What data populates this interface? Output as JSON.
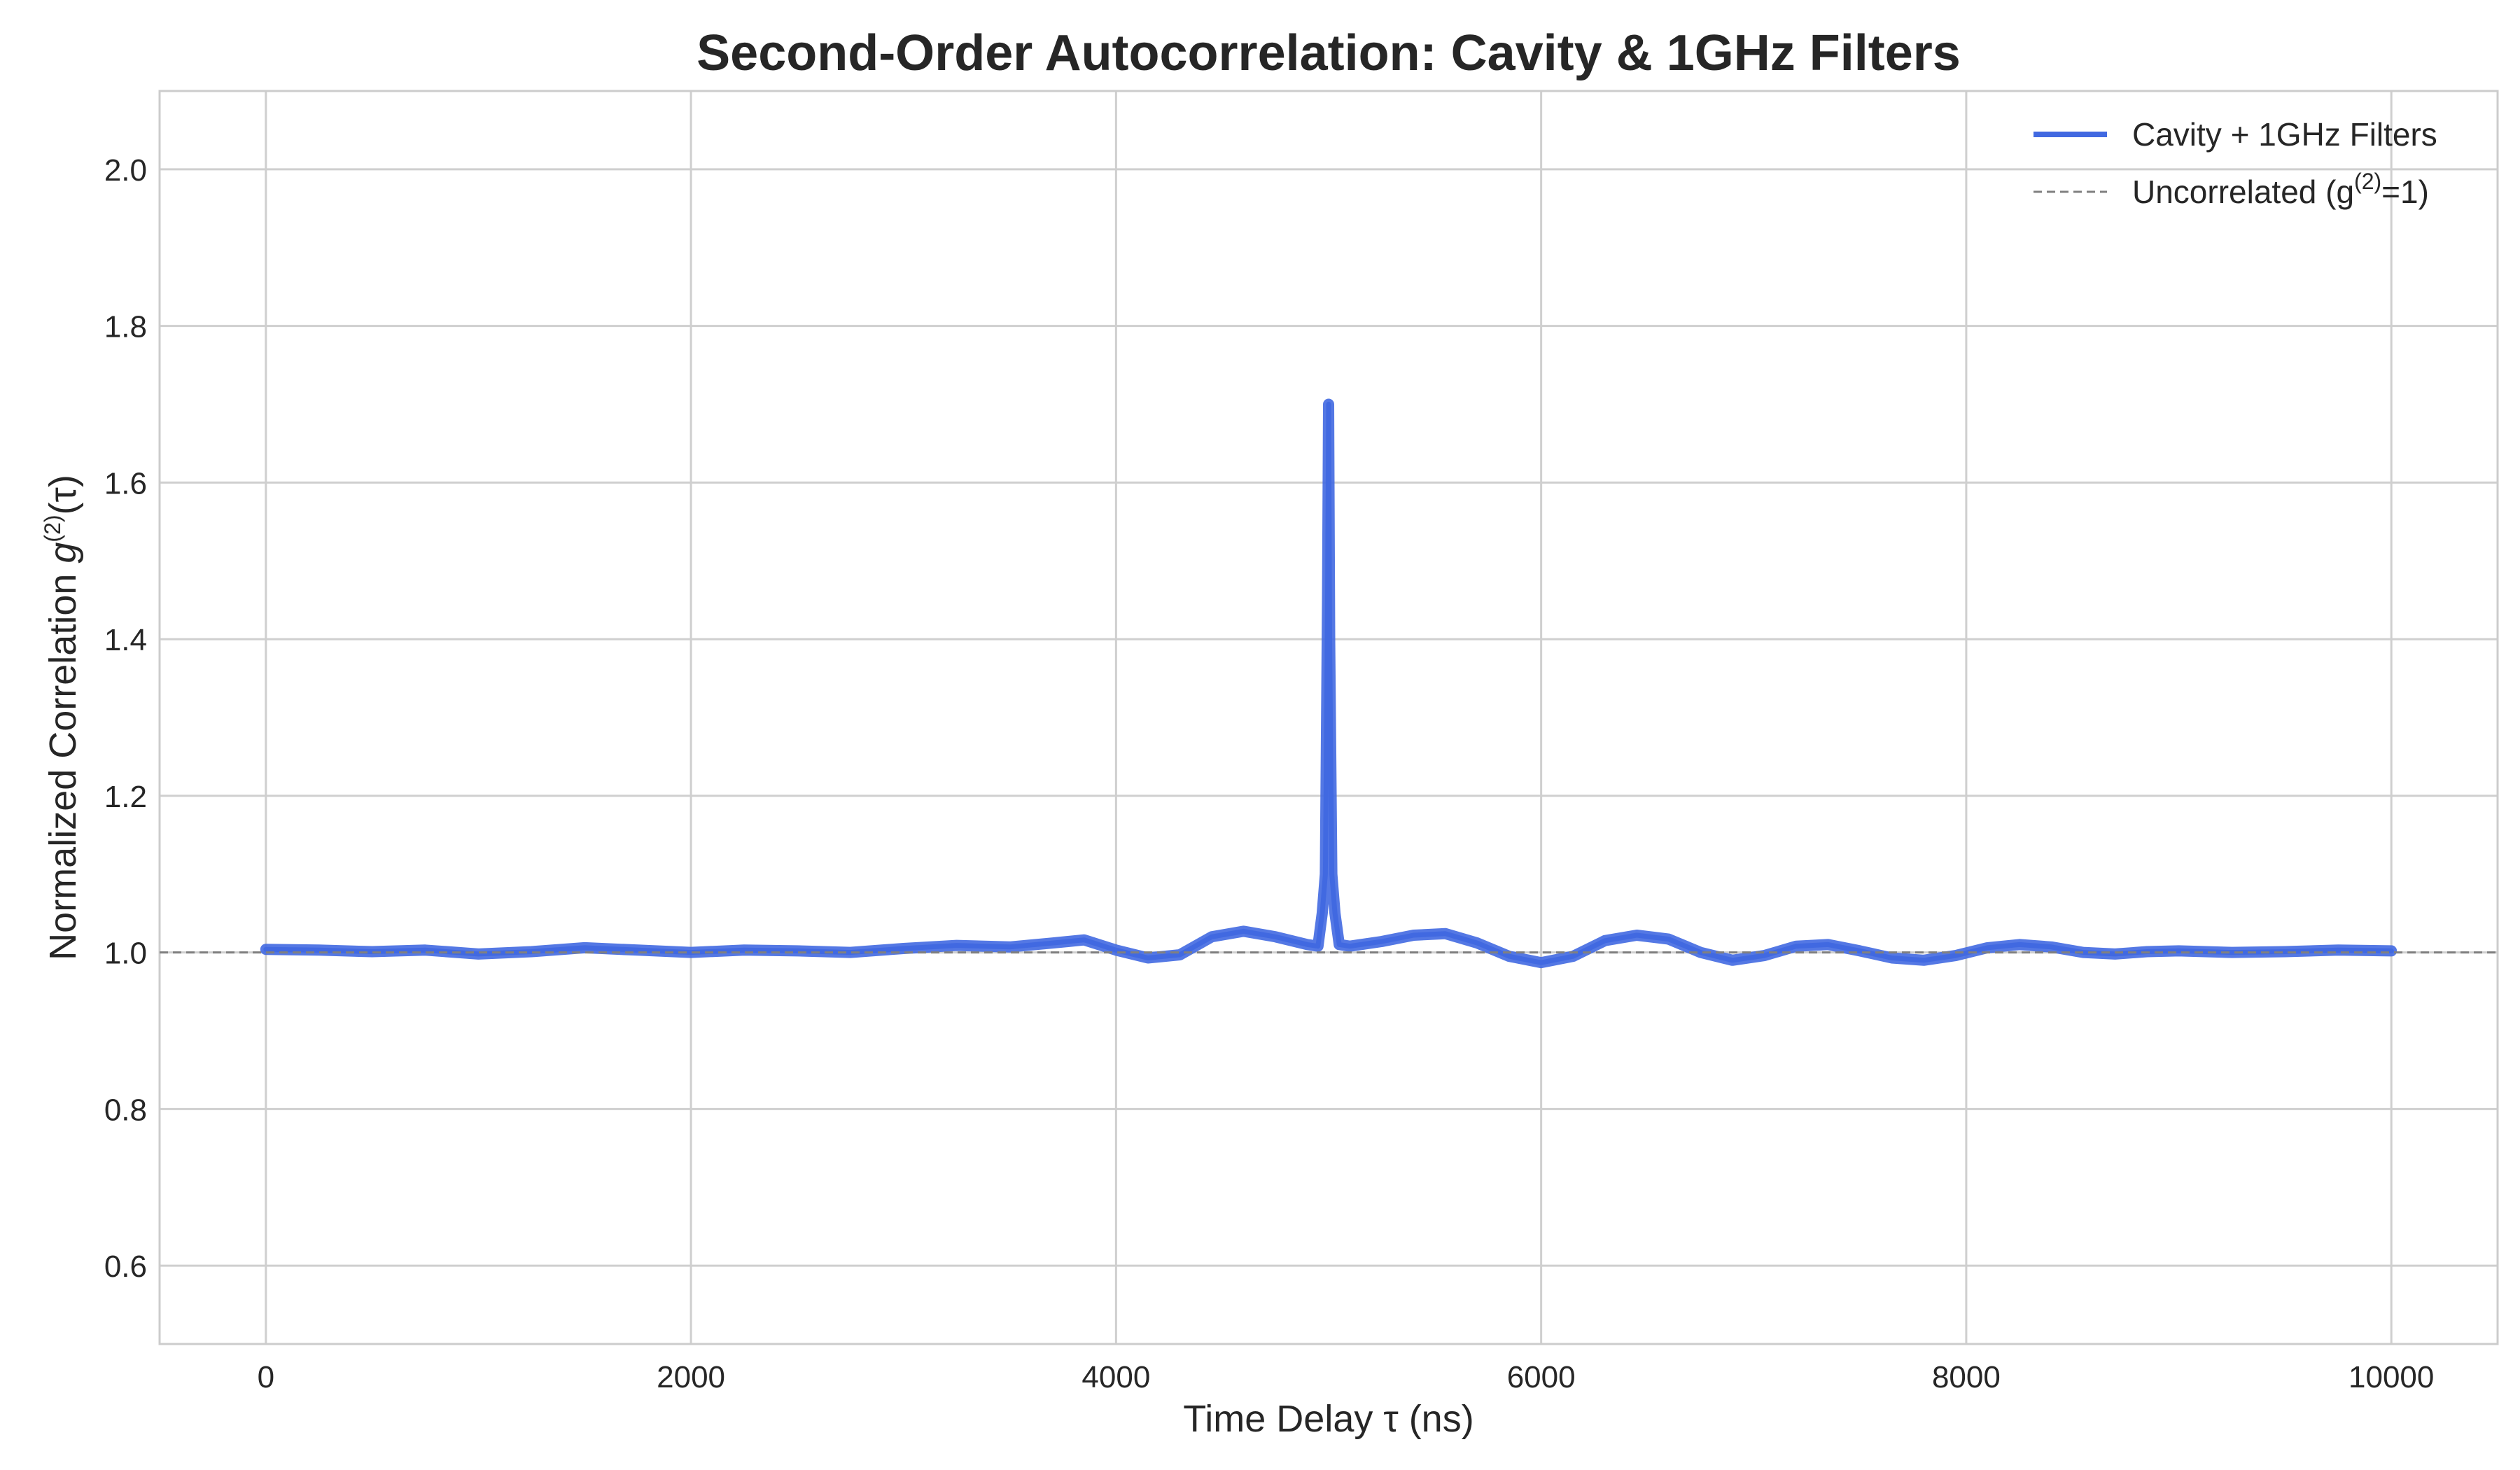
{
  "chart_data": {
    "type": "line",
    "title": "Second-Order Autocorrelation: Cavity & 1GHz Filters",
    "xlabel": "Time Delay τ (ns)",
    "ylabel_main": "Normalized Correlation ",
    "ylabel_g": "g",
    "ylabel_sup": "(2)",
    "ylabel_tail": "(τ)",
    "xlim": [
      -500,
      10500
    ],
    "ylim": [
      0.5,
      2.1
    ],
    "xticks": [
      0,
      2000,
      4000,
      6000,
      8000,
      10000
    ],
    "yticks": [
      0.6,
      0.8,
      1.0,
      1.2,
      1.4,
      1.6,
      1.8,
      2.0
    ],
    "grid": true,
    "legend_position": "top-right",
    "series": [
      {
        "name": "Cavity + 1GHz Filters",
        "color": "#4169e1",
        "style": "solid",
        "x": [
          0,
          250,
          500,
          750,
          1000,
          1250,
          1500,
          1750,
          2000,
          2250,
          2500,
          2750,
          3000,
          3250,
          3500,
          3700,
          3850,
          4000,
          4150,
          4300,
          4450,
          4600,
          4750,
          4900,
          4950,
          4970,
          4985,
          4995,
          5000,
          5005,
          5015,
          5030,
          5050,
          5100,
          5250,
          5400,
          5550,
          5700,
          5850,
          6000,
          6150,
          6300,
          6450,
          6600,
          6750,
          6900,
          7050,
          7200,
          7350,
          7500,
          7650,
          7800,
          7950,
          8100,
          8250,
          8400,
          8550,
          8700,
          8850,
          9000,
          9250,
          9500,
          9750,
          10000
        ],
        "y": [
          1.004,
          1.003,
          1.001,
          1.003,
          0.998,
          1.001,
          1.006,
          1.003,
          1.0,
          1.003,
          1.002,
          1.0,
          1.005,
          1.009,
          1.007,
          1.012,
          1.016,
          1.003,
          0.993,
          0.997,
          1.02,
          1.027,
          1.02,
          1.01,
          1.008,
          1.05,
          1.1,
          1.45,
          1.7,
          1.4,
          1.1,
          1.05,
          1.01,
          1.008,
          1.014,
          1.022,
          1.024,
          1.012,
          0.995,
          0.987,
          0.995,
          1.015,
          1.022,
          1.017,
          1.0,
          0.99,
          0.996,
          1.008,
          1.01,
          1.002,
          0.993,
          0.99,
          0.996,
          1.006,
          1.01,
          1.007,
          1.0,
          0.998,
          1.001,
          1.002,
          1.0,
          1.001,
          1.003,
          1.002
        ]
      },
      {
        "name": "Uncorrelated (g(2)=1)",
        "label_main": "Uncorrelated (g",
        "label_sup": "(2)",
        "label_tail": "=1)",
        "color": "#808080",
        "style": "dashed",
        "y_constant": 1.0
      }
    ]
  }
}
